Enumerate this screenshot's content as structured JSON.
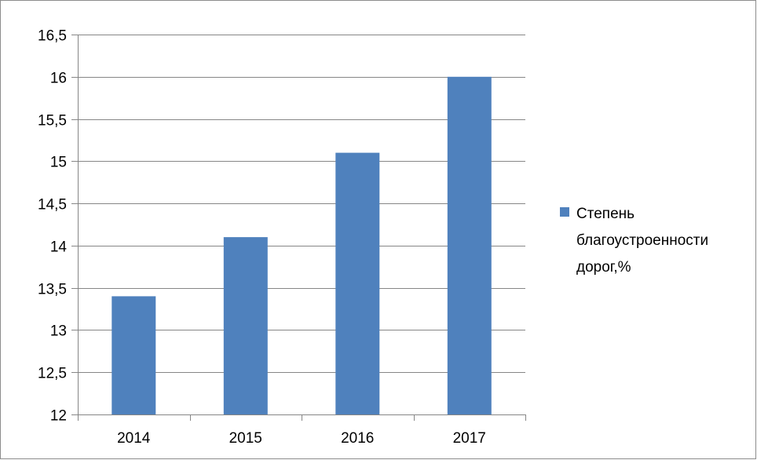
{
  "chart_data": {
    "type": "bar",
    "categories": [
      "2014",
      "2015",
      "2016",
      "2017"
    ],
    "series": [
      {
        "name": "Степень благоустроенности дорог,%",
        "values": [
          13.4,
          14.1,
          15.1,
          16.0
        ],
        "color": "#4f81bd"
      }
    ],
    "ylim": [
      12,
      16.5
    ],
    "ystep": 0.5,
    "ytick_labels": [
      "12",
      "12,5",
      "13",
      "13,5",
      "14",
      "14,5",
      "15",
      "15,5",
      "16",
      "16,5"
    ],
    "grid": true,
    "legend": {
      "position": "right",
      "lines": [
        "Степень",
        "благоустроенности",
        "дорог,%"
      ]
    },
    "colors": {
      "bar": "#4f81bd",
      "grid": "#868686",
      "axis": "#868686",
      "frame": "#8c8c8c"
    }
  }
}
